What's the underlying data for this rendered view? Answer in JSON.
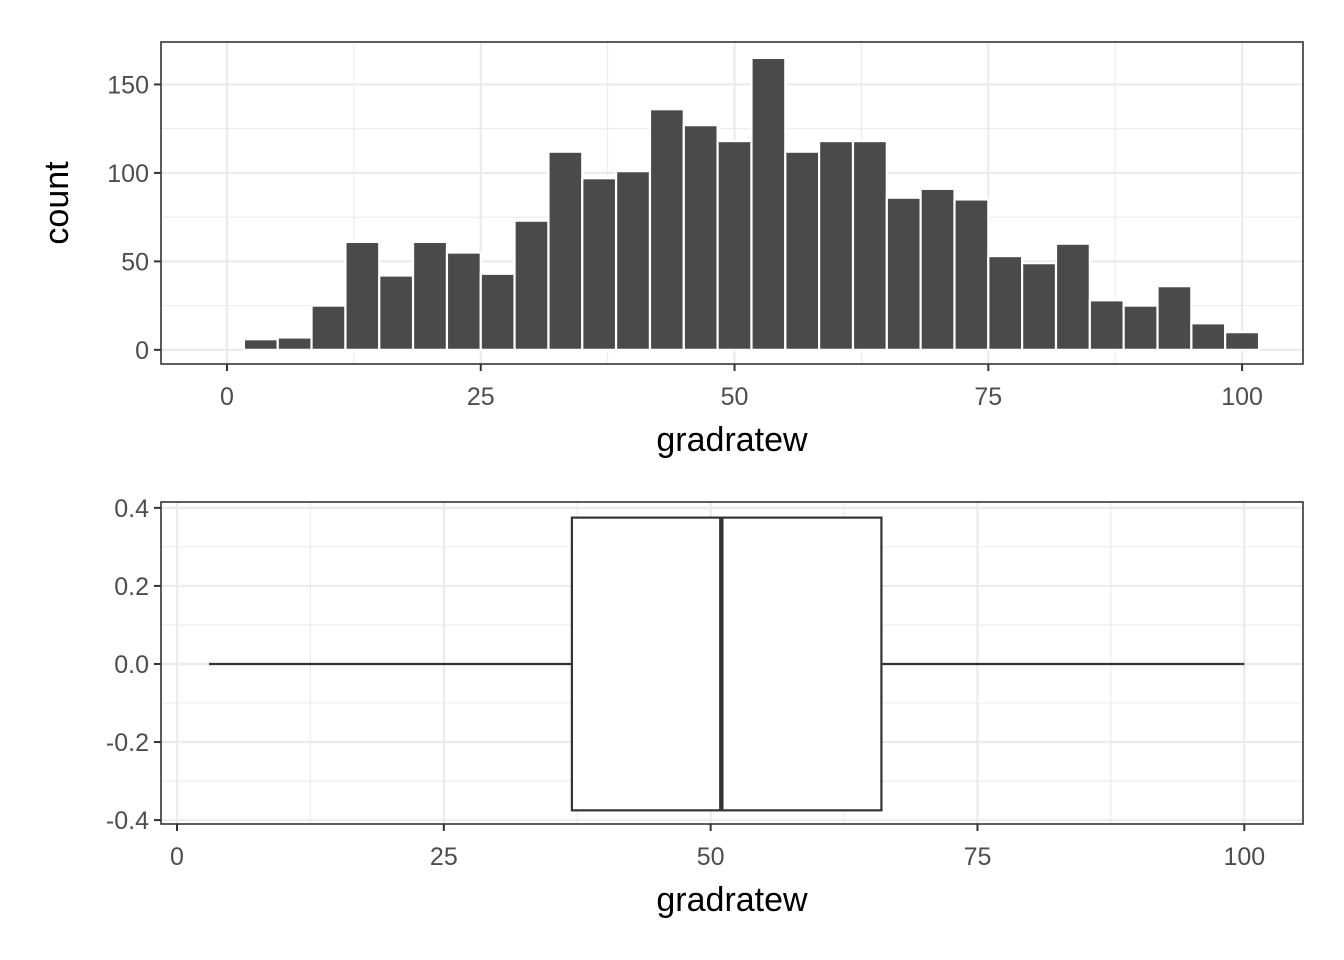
{
  "chart_data": [
    {
      "type": "bar",
      "chart_kind": "histogram",
      "xlabel": "gradratew",
      "ylabel": "count",
      "xlim": [
        -6.5,
        106
      ],
      "ylim": [
        -8,
        174
      ],
      "x_ticks": [
        0,
        25,
        50,
        75,
        100
      ],
      "y_ticks": [
        0,
        50,
        100,
        150
      ],
      "x_tick_labels": [
        "0",
        "25",
        "50",
        "75",
        "100"
      ],
      "y_tick_labels": [
        "0",
        "50",
        "100",
        "150"
      ],
      "bin_width": 3.33,
      "bins": [
        {
          "x0": 1.67,
          "x1": 5.0,
          "count": 6
        },
        {
          "x0": 5.0,
          "x1": 8.33,
          "count": 7
        },
        {
          "x0": 8.33,
          "x1": 11.67,
          "count": 25
        },
        {
          "x0": 11.67,
          "x1": 15.0,
          "count": 61
        },
        {
          "x0": 15.0,
          "x1": 18.33,
          "count": 42
        },
        {
          "x0": 18.33,
          "x1": 21.67,
          "count": 61
        },
        {
          "x0": 21.67,
          "x1": 25.0,
          "count": 55
        },
        {
          "x0": 25.0,
          "x1": 28.33,
          "count": 43
        },
        {
          "x0": 28.33,
          "x1": 31.67,
          "count": 73
        },
        {
          "x0": 31.67,
          "x1": 35.0,
          "count": 112
        },
        {
          "x0": 35.0,
          "x1": 38.33,
          "count": 97
        },
        {
          "x0": 38.33,
          "x1": 41.67,
          "count": 101
        },
        {
          "x0": 41.67,
          "x1": 45.0,
          "count": 136
        },
        {
          "x0": 45.0,
          "x1": 48.33,
          "count": 127
        },
        {
          "x0": 48.33,
          "x1": 51.67,
          "count": 118
        },
        {
          "x0": 51.67,
          "x1": 55.0,
          "count": 165
        },
        {
          "x0": 55.0,
          "x1": 58.33,
          "count": 112
        },
        {
          "x0": 58.33,
          "x1": 61.67,
          "count": 118
        },
        {
          "x0": 61.67,
          "x1": 65.0,
          "count": 118
        },
        {
          "x0": 65.0,
          "x1": 68.33,
          "count": 86
        },
        {
          "x0": 68.33,
          "x1": 71.67,
          "count": 91
        },
        {
          "x0": 71.67,
          "x1": 75.0,
          "count": 85
        },
        {
          "x0": 75.0,
          "x1": 78.33,
          "count": 53
        },
        {
          "x0": 78.33,
          "x1": 81.67,
          "count": 49
        },
        {
          "x0": 81.67,
          "x1": 85.0,
          "count": 60
        },
        {
          "x0": 85.0,
          "x1": 88.33,
          "count": 28
        },
        {
          "x0": 88.33,
          "x1": 91.67,
          "count": 25
        },
        {
          "x0": 91.67,
          "x1": 95.0,
          "count": 36
        },
        {
          "x0": 95.0,
          "x1": 98.33,
          "count": 15
        },
        {
          "x0": 98.33,
          "x1": 101.67,
          "count": 10
        }
      ],
      "bar_color": "#4a4a4a",
      "grid": true
    },
    {
      "type": "boxplot",
      "orientation": "horizontal",
      "xlabel": "gradratew",
      "ylabel": "",
      "xlim": [
        -1.5,
        105.5
      ],
      "ylim": [
        -0.41,
        0.415
      ],
      "x_ticks": [
        0,
        25,
        50,
        75,
        100
      ],
      "y_ticks": [
        -0.4,
        -0.2,
        0.0,
        0.2,
        0.4
      ],
      "x_tick_labels": [
        "0",
        "25",
        "50",
        "75",
        "100"
      ],
      "y_tick_labels": [
        "-0.4",
        "-0.2",
        "0.0",
        "0.2",
        "0.4"
      ],
      "box": {
        "min": 3,
        "q1": 37,
        "median": 51,
        "q3": 66,
        "max": 100,
        "y_low": -0.375,
        "y_high": 0.375
      },
      "box_fill": "#ffffff",
      "line_color": "#333333",
      "grid": true
    }
  ]
}
